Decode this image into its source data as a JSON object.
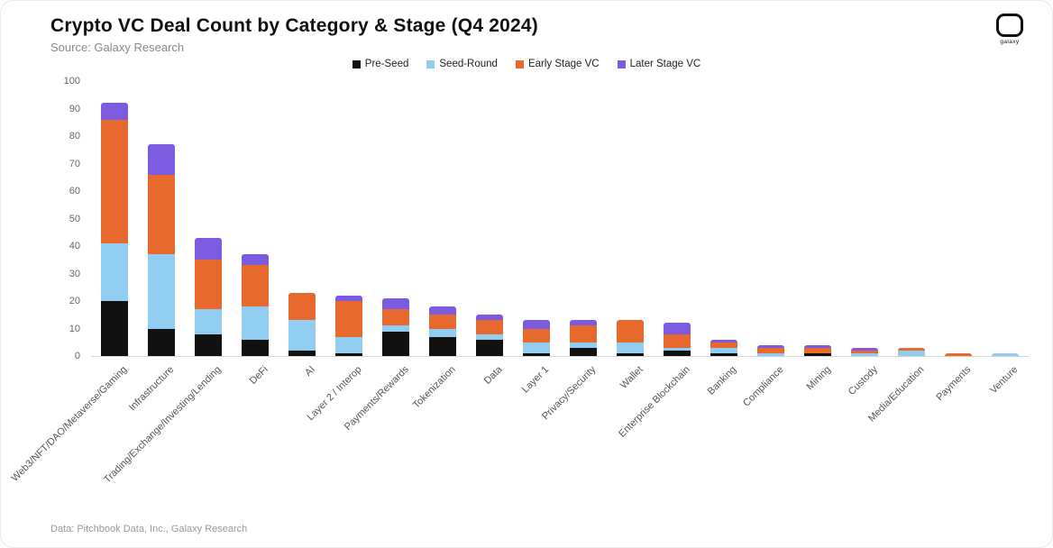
{
  "header": {
    "title": "Crypto VC Deal Count by Category & Stage (Q4 2024)",
    "source": "Source: Galaxy Research",
    "logo_text": "galaxy"
  },
  "footer": {
    "note": "Data: Pitchbook Data, Inc., Galaxy Research"
  },
  "chart_data": {
    "type": "bar",
    "stacked": true,
    "title": "Crypto VC Deal Count by Category & Stage (Q4 2024)",
    "xlabel": "",
    "ylabel": "",
    "ylim": [
      0,
      100
    ],
    "ytick_step": 10,
    "grid": false,
    "legend_position": "top-center",
    "categories": [
      "Web3/NFT/DAO/Metaverse/Gaming",
      "Infrastructure",
      "Trading/Exchange/Investing/Lending",
      "DeFi",
      "AI",
      "Layer 2 / Interop",
      "Payments/Rewards",
      "Tokenization",
      "Data",
      "Layer 1",
      "Privacy/Security",
      "Wallet",
      "Enterprise Blockchain",
      "Banking",
      "Compliance",
      "Mining",
      "Custody",
      "Media/Education",
      "Payments",
      "Venture"
    ],
    "series": [
      {
        "name": "Pre-Seed",
        "color": "#111111",
        "values": [
          20,
          10,
          8,
          6,
          2,
          1,
          9,
          7,
          6,
          1,
          3,
          1,
          2,
          1,
          0,
          1,
          0,
          0,
          0,
          0
        ]
      },
      {
        "name": "Seed-Round",
        "color": "#90cdf0",
        "values": [
          21,
          27,
          9,
          12,
          11,
          6,
          2,
          3,
          2,
          4,
          2,
          4,
          1,
          2,
          1,
          0,
          1,
          2,
          0,
          1
        ]
      },
      {
        "name": "Early Stage VC",
        "color": "#e8692e",
        "values": [
          45,
          29,
          18,
          15,
          10,
          13,
          6,
          5,
          5,
          5,
          6,
          8,
          5,
          2,
          2,
          2,
          1,
          1,
          1,
          0
        ]
      },
      {
        "name": "Later Stage VC",
        "color": "#7d5be0",
        "values": [
          6,
          11,
          8,
          4,
          0,
          2,
          4,
          3,
          2,
          3,
          2,
          0,
          4,
          1,
          1,
          1,
          1,
          0,
          0,
          0
        ]
      }
    ]
  }
}
